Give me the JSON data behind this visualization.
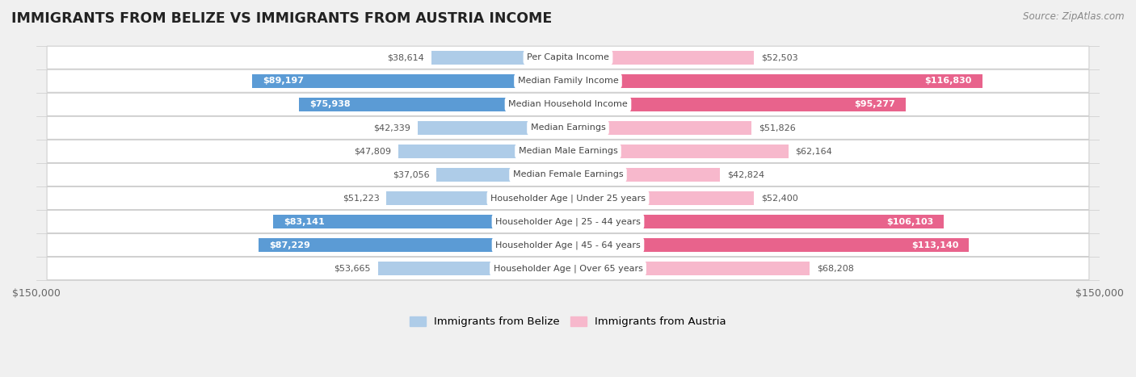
{
  "title": "IMMIGRANTS FROM BELIZE VS IMMIGRANTS FROM AUSTRIA INCOME",
  "source": "Source: ZipAtlas.com",
  "categories": [
    "Per Capita Income",
    "Median Family Income",
    "Median Household Income",
    "Median Earnings",
    "Median Male Earnings",
    "Median Female Earnings",
    "Householder Age | Under 25 years",
    "Householder Age | 25 - 44 years",
    "Householder Age | 45 - 64 years",
    "Householder Age | Over 65 years"
  ],
  "belize_values": [
    38614,
    89197,
    75938,
    42339,
    47809,
    37056,
    51223,
    83141,
    87229,
    53665
  ],
  "austria_values": [
    52503,
    116830,
    95277,
    51826,
    62164,
    42824,
    52400,
    106103,
    113140,
    68208
  ],
  "belize_light_color": "#aecce8",
  "belize_dark_color": "#5b9bd5",
  "austria_light_color": "#f7b8cc",
  "austria_dark_color": "#e8638c",
  "max_value": 150000,
  "bg_color": "#f0f0f0",
  "row_bg_color": "#ffffff",
  "center_label_bg": "#ffffff",
  "legend_belize": "Immigrants from Belize",
  "legend_austria": "Immigrants from Austria",
  "bar_height": 0.58,
  "belize_threshold": 65000,
  "austria_threshold": 75000,
  "label_inside_color": "#ffffff",
  "label_outside_color": "#555555"
}
